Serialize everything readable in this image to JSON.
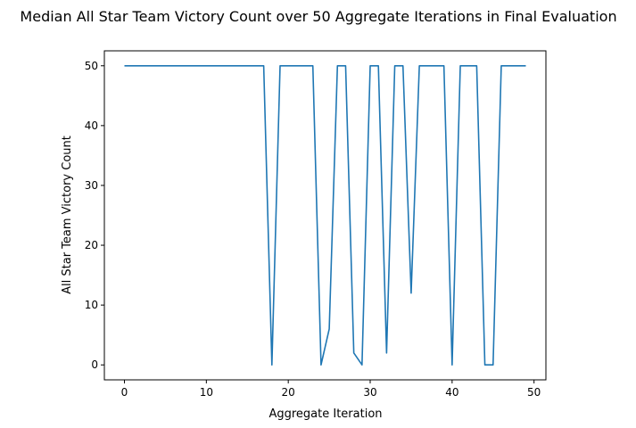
{
  "chart_data": {
    "type": "line",
    "title": "Median All Star Team Victory Count over 50 Aggregate Iterations in Final Evaluation",
    "xlabel": "Aggregate Iteration",
    "ylabel": "All Star Team Victory Count",
    "xlim": [
      -2.45,
      51.45
    ],
    "ylim": [
      -2.5,
      52.5
    ],
    "xticks": [
      0,
      10,
      20,
      30,
      40,
      50
    ],
    "yticks": [
      0,
      10,
      20,
      30,
      40,
      50
    ],
    "grid": false,
    "series": [
      {
        "color": "#1f77b4",
        "x": [
          0,
          1,
          2,
          3,
          4,
          5,
          6,
          7,
          8,
          9,
          10,
          11,
          12,
          13,
          14,
          15,
          16,
          17,
          18,
          19,
          20,
          21,
          22,
          23,
          24,
          25,
          26,
          27,
          28,
          29,
          30,
          31,
          32,
          33,
          34,
          35,
          36,
          37,
          38,
          39,
          40,
          41,
          42,
          43,
          44,
          45,
          46,
          47,
          48,
          49
        ],
        "y": [
          50,
          50,
          50,
          50,
          50,
          50,
          50,
          50,
          50,
          50,
          50,
          50,
          50,
          50,
          50,
          50,
          50,
          50,
          0,
          50,
          50,
          50,
          50,
          50,
          0,
          6,
          50,
          50,
          2,
          0,
          50,
          50,
          2,
          50,
          50,
          12,
          50,
          50,
          50,
          50,
          0,
          50,
          50,
          50,
          0,
          0,
          50,
          50,
          50,
          50
        ]
      }
    ]
  }
}
